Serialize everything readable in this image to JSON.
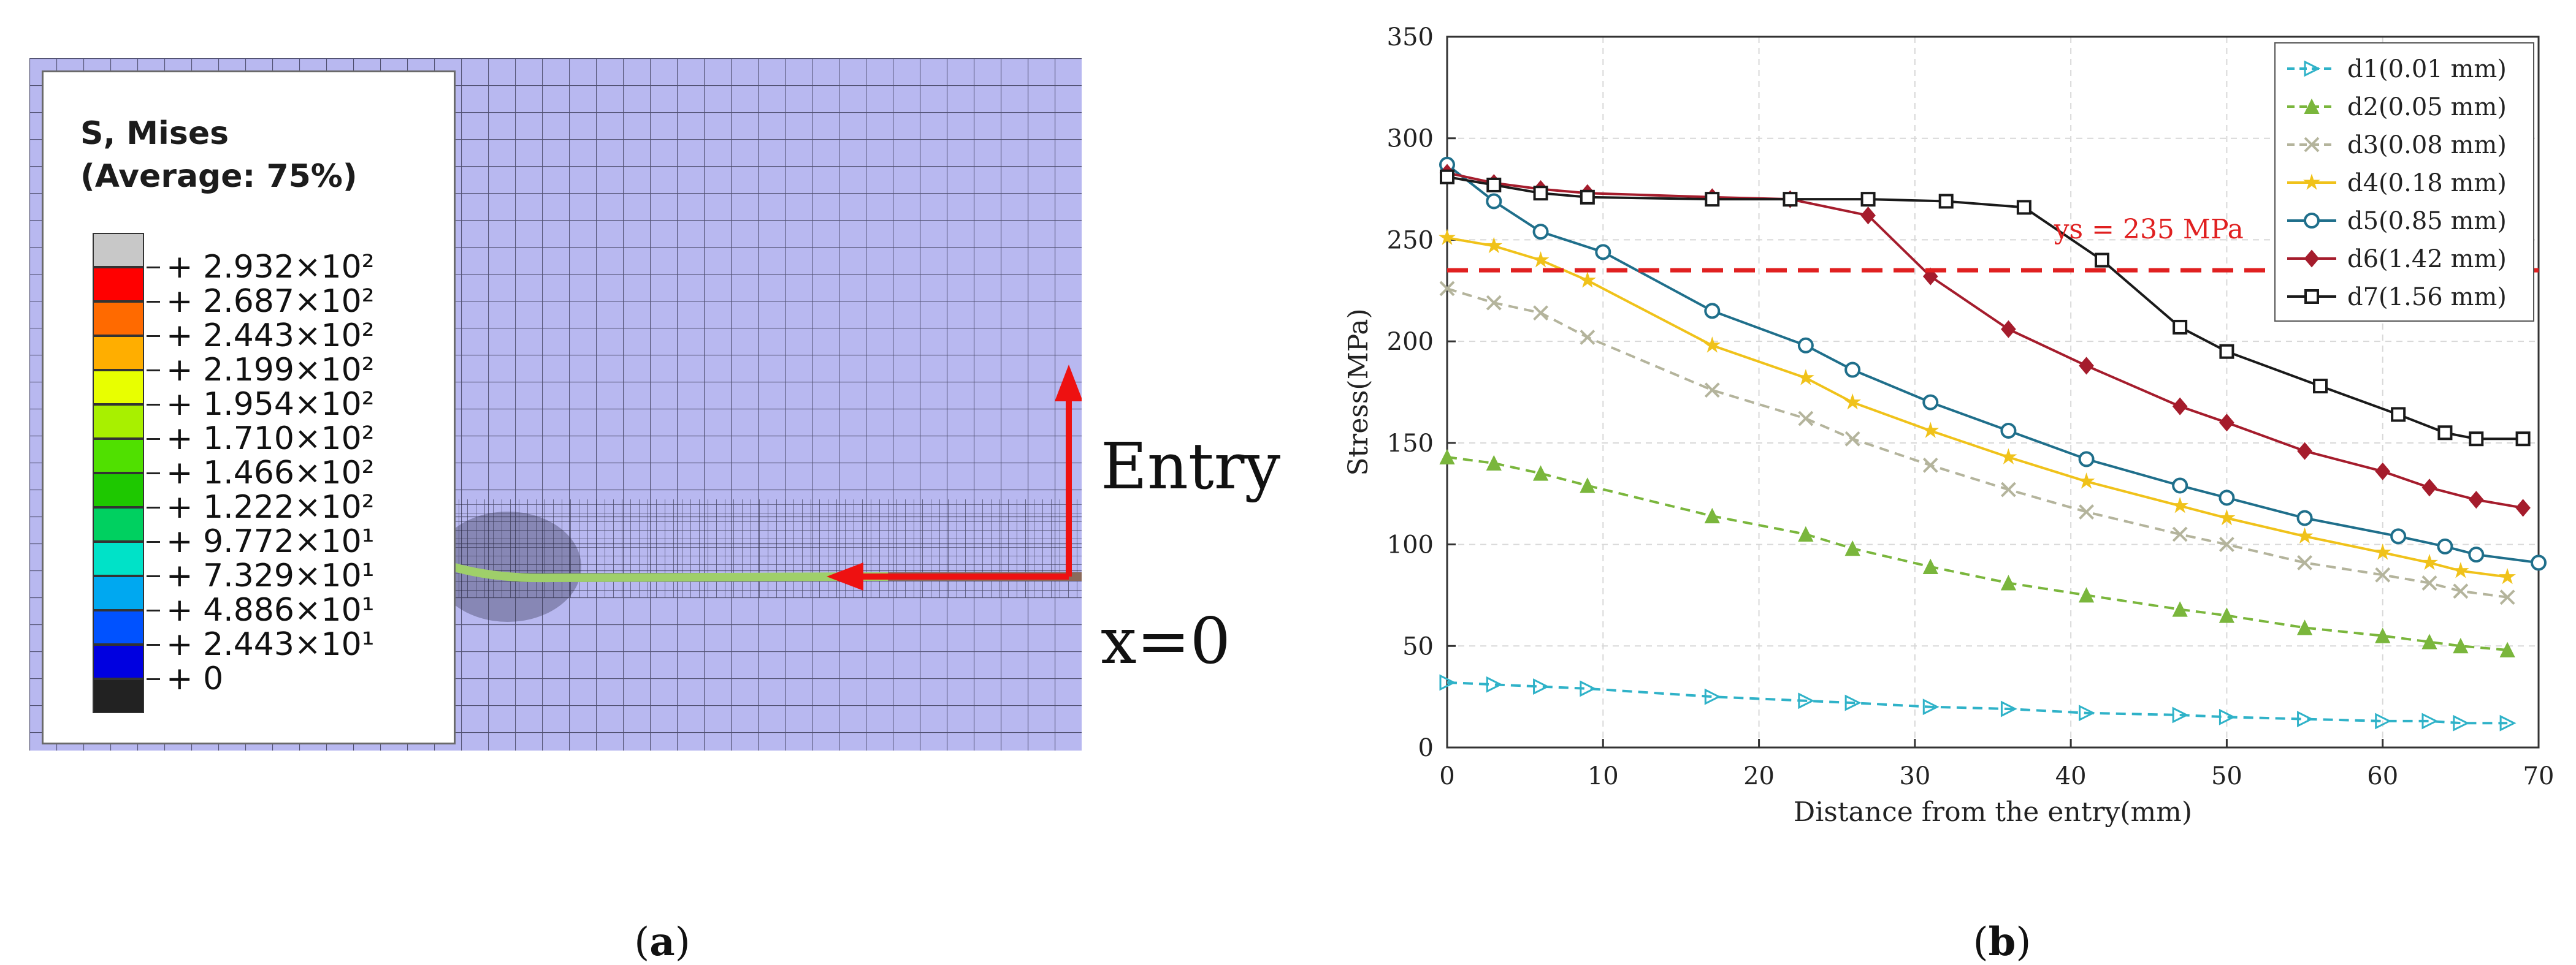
{
  "panel_a": {
    "legend_title_1": "S, Mises",
    "legend_title_2": "(Average: 75%)",
    "colorbar_colors": [
      "#c8c8c8",
      "#ff0000",
      "#ff6a00",
      "#ffae00",
      "#e8ff00",
      "#a8f000",
      "#50e000",
      "#1ec800",
      "#00d060",
      "#00e2c8",
      "#00a8f0",
      "#0052ff",
      "#0000e0",
      "#222222"
    ],
    "colorbar_labels": [
      "+ 2.932×10²",
      "+ 2.687×10²",
      "+ 2.443×10²",
      "+ 2.199×10²",
      "+ 1.954×10²",
      "+ 1.710×10²",
      "+ 1.466×10²",
      "+ 1.222×10²",
      "+ 9.772×10¹",
      "+ 7.329×10¹",
      "+ 4.886×10¹",
      "+ 2.443×10¹",
      "+ 0"
    ],
    "entry_label": "Entry",
    "origin_label": "x=0",
    "mesh_color": "#b8b8f0",
    "arrow_color": "#ee1111"
  },
  "captions": {
    "a": "a",
    "b": "b"
  },
  "chart_data": {
    "type": "line",
    "xlabel": "Distance from the entry(mm)",
    "ylabel": "Stress(MPa)",
    "xlim": [
      0,
      70
    ],
    "ylim": [
      0,
      350
    ],
    "xticks": [
      0,
      10,
      20,
      30,
      40,
      50,
      60,
      70
    ],
    "yticks": [
      0,
      50,
      100,
      150,
      200,
      250,
      300,
      350
    ],
    "grid": true,
    "legend_position": "top-right",
    "reference_line": {
      "y": 235,
      "label": "ys = 235 MPa",
      "color": "#e02020"
    },
    "series": [
      {
        "name": "d1(0.01 mm)",
        "color": "#2fb2c8",
        "dash": true,
        "marker": "triangle-right",
        "x": [
          0,
          3,
          6,
          9,
          17,
          23,
          26,
          31,
          36,
          41,
          47,
          50,
          55,
          60,
          63,
          65,
          68
        ],
        "y": [
          32,
          31,
          30,
          29,
          25,
          23,
          22,
          20,
          19,
          17,
          16,
          15,
          14,
          13,
          13,
          12,
          12
        ]
      },
      {
        "name": "d2(0.05 mm)",
        "color": "#7ab63c",
        "dash": true,
        "marker": "triangle-up",
        "x": [
          0,
          3,
          6,
          9,
          17,
          23,
          26,
          31,
          36,
          41,
          47,
          50,
          55,
          60,
          63,
          65,
          68
        ],
        "y": [
          143,
          140,
          135,
          129,
          114,
          105,
          98,
          89,
          81,
          75,
          68,
          65,
          59,
          55,
          52,
          50,
          48
        ]
      },
      {
        "name": "d3(0.08 mm)",
        "color": "#b4b49c",
        "dash": true,
        "marker": "x",
        "x": [
          0,
          3,
          6,
          9,
          17,
          23,
          26,
          31,
          36,
          41,
          47,
          50,
          55,
          60,
          63,
          65,
          68
        ],
        "y": [
          226,
          219,
          214,
          202,
          176,
          162,
          152,
          139,
          127,
          116,
          105,
          100,
          91,
          85,
          81,
          77,
          74
        ]
      },
      {
        "name": "d4(0.18 mm)",
        "color": "#f0c21a",
        "dash": false,
        "marker": "star",
        "x": [
          0,
          3,
          6,
          9,
          17,
          23,
          26,
          31,
          36,
          41,
          47,
          50,
          55,
          60,
          63,
          65,
          68
        ],
        "y": [
          251,
          247,
          240,
          230,
          198,
          182,
          170,
          156,
          143,
          131,
          119,
          113,
          104,
          96,
          91,
          87,
          84
        ]
      },
      {
        "name": "d5(0.85 mm)",
        "color": "#1f6f8b",
        "dash": false,
        "marker": "circle",
        "x": [
          0,
          3,
          6,
          10,
          17,
          23,
          26,
          31,
          36,
          41,
          47,
          50,
          55,
          61,
          64,
          66,
          70
        ],
        "y": [
          287,
          269,
          254,
          244,
          215,
          198,
          186,
          170,
          156,
          142,
          129,
          123,
          113,
          104,
          99,
          95,
          91
        ]
      },
      {
        "name": "d6(1.42 mm)",
        "color": "#a51c2c",
        "dash": false,
        "marker": "diamond",
        "x": [
          0,
          3,
          6,
          9,
          17,
          22,
          27,
          31,
          36,
          41,
          47,
          50,
          55,
          60,
          63,
          66,
          69
        ],
        "y": [
          283,
          278,
          275,
          273,
          271,
          270,
          262,
          232,
          206,
          188,
          168,
          160,
          146,
          136,
          128,
          122,
          118
        ]
      },
      {
        "name": "d7(1.56 mm)",
        "color": "#1a1a1a",
        "dash": false,
        "marker": "square",
        "x": [
          0,
          3,
          6,
          9,
          17,
          22,
          27,
          32,
          37,
          42,
          47,
          50,
          56,
          61,
          64,
          66,
          69
        ],
        "y": [
          281,
          277,
          273,
          271,
          270,
          270,
          270,
          269,
          266,
          240,
          207,
          195,
          178,
          164,
          155,
          152,
          152
        ]
      }
    ]
  }
}
